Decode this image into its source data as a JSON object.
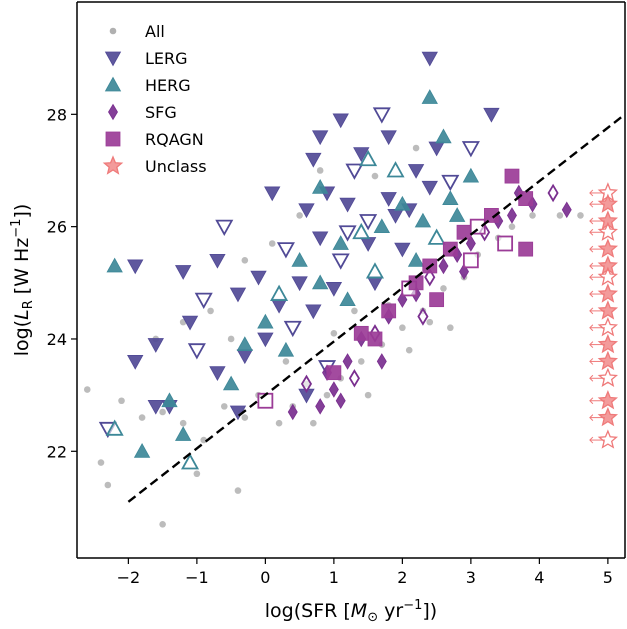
{
  "chart_data": {
    "type": "scatter",
    "title": "",
    "xlabel": {
      "pre": "log(SFR [",
      "sym": "M",
      "sub": "⊙",
      "unit": " yr",
      "sup": "−1",
      "post": "])"
    },
    "ylabel": {
      "pre": "log(",
      "sym": "L",
      "sub": "R",
      "unit": " [W Hz",
      "sup": "−1",
      "post": "])"
    },
    "xlim": [
      -2.75,
      5.25
    ],
    "ylim": [
      20.1,
      30.0
    ],
    "xticks": [
      -2,
      -1,
      0,
      1,
      2,
      3,
      4,
      5
    ],
    "yticks": [
      22,
      24,
      26,
      28
    ],
    "xtick_labels": [
      "−2",
      "−1",
      "0",
      "1",
      "2",
      "3",
      "4",
      "5"
    ],
    "ytick_labels": [
      "22",
      "24",
      "26",
      "28"
    ],
    "grid": false,
    "legend_position": "top-left",
    "reference_line": {
      "style": "dashed",
      "color": "#000000",
      "points": [
        [
          -2,
          21.1
        ],
        [
          5.25,
          28.0
        ]
      ]
    },
    "series": [
      {
        "name": "All",
        "marker": "circle",
        "color": "#b0b0b0",
        "points": [
          [
            -2.6,
            23.1
          ],
          [
            -2.1,
            22.9
          ],
          [
            -1.8,
            22.6
          ],
          [
            -1.5,
            22.7
          ],
          [
            -1.2,
            22.5
          ],
          [
            -0.9,
            22.2
          ],
          [
            -0.6,
            22.8
          ],
          [
            -0.3,
            22.6
          ],
          [
            -0.1,
            23.0
          ],
          [
            0.2,
            22.5
          ],
          [
            0.4,
            22.8
          ],
          [
            0.6,
            23.2
          ],
          [
            0.9,
            23.0
          ],
          [
            1.1,
            23.3
          ],
          [
            1.4,
            23.6
          ],
          [
            1.7,
            23.9
          ],
          [
            2.0,
            24.2
          ],
          [
            2.3,
            24.5
          ],
          [
            2.6,
            24.9
          ],
          [
            2.9,
            25.1
          ],
          [
            3.1,
            25.5
          ],
          [
            3.4,
            25.8
          ],
          [
            3.6,
            26.0
          ],
          [
            3.9,
            26.2
          ],
          [
            4.3,
            26.2
          ],
          [
            4.6,
            26.2
          ],
          [
            -2.4,
            21.8
          ],
          [
            -1.5,
            20.7
          ],
          [
            -1.0,
            21.6
          ],
          [
            -0.4,
            21.3
          ],
          [
            -2.3,
            21.4
          ],
          [
            -1.6,
            24.0
          ],
          [
            -1.2,
            24.3
          ],
          [
            -0.8,
            24.5
          ],
          [
            0.1,
            25.7
          ],
          [
            0.8,
            27.0
          ],
          [
            1.6,
            26.9
          ],
          [
            2.2,
            27.4
          ],
          [
            0.5,
            26.2
          ],
          [
            -0.3,
            25.4
          ],
          [
            1.0,
            24.1
          ],
          [
            1.3,
            24.5
          ],
          [
            1.8,
            24.6
          ],
          [
            2.1,
            23.8
          ],
          [
            2.4,
            24.3
          ],
          [
            2.7,
            24.2
          ],
          [
            1.5,
            23.0
          ],
          [
            0.7,
            22.5
          ],
          [
            0.3,
            23.6
          ],
          [
            -0.5,
            24.0
          ]
        ]
      },
      {
        "name": "LERG",
        "marker": "triangle-down",
        "color": "#514a96",
        "points": [
          [
            -2.3,
            22.4
          ],
          [
            -1.9,
            23.6
          ],
          [
            -1.6,
            22.8
          ],
          [
            -1.4,
            22.8
          ],
          [
            -1.0,
            23.8
          ],
          [
            -0.7,
            23.4
          ],
          [
            -0.4,
            22.7
          ],
          [
            -1.2,
            25.2
          ],
          [
            -0.9,
            24.7
          ],
          [
            -0.7,
            25.4
          ],
          [
            -0.4,
            24.8
          ],
          [
            -0.1,
            25.1
          ],
          [
            0.3,
            25.6
          ],
          [
            0.6,
            26.3
          ],
          [
            0.9,
            26.6
          ],
          [
            1.2,
            26.4
          ],
          [
            1.5,
            26.1
          ],
          [
            1.8,
            26.5
          ],
          [
            2.1,
            26.3
          ],
          [
            2.4,
            26.7
          ],
          [
            2.7,
            26.8
          ],
          [
            0.2,
            24.6
          ],
          [
            0.5,
            25.0
          ],
          [
            0.8,
            25.8
          ],
          [
            1.1,
            25.4
          ],
          [
            0.8,
            27.6
          ],
          [
            1.1,
            27.9
          ],
          [
            1.4,
            27.3
          ],
          [
            1.7,
            28.0
          ],
          [
            1.8,
            27.6
          ],
          [
            2.4,
            29.0
          ],
          [
            2.5,
            27.4
          ],
          [
            3.0,
            27.4
          ],
          [
            3.3,
            28.0
          ],
          [
            -1.9,
            25.3
          ],
          [
            0.7,
            27.2
          ],
          [
            1.3,
            27.0
          ],
          [
            2.2,
            27.0
          ],
          [
            0.0,
            24.0
          ],
          [
            -0.3,
            23.7
          ],
          [
            0.4,
            24.2
          ],
          [
            1.0,
            24.9
          ],
          [
            1.6,
            25.0
          ],
          [
            2.0,
            25.6
          ],
          [
            -0.6,
            26.0
          ],
          [
            0.1,
            26.6
          ],
          [
            -1.6,
            23.9
          ],
          [
            -1.1,
            24.3
          ],
          [
            0.9,
            23.5
          ],
          [
            0.6,
            23.0
          ],
          [
            1.9,
            26.2
          ],
          [
            1.5,
            25.7
          ],
          [
            1.2,
            25.9
          ],
          [
            0.7,
            24.5
          ]
        ]
      },
      {
        "name": "HERG",
        "marker": "triangle-up",
        "color": "#3d8898",
        "points": [
          [
            -2.2,
            22.4
          ],
          [
            -1.8,
            22.0
          ],
          [
            -1.4,
            22.9
          ],
          [
            -1.2,
            22.3
          ],
          [
            -1.1,
            21.8
          ],
          [
            -2.2,
            25.3
          ],
          [
            -0.5,
            23.2
          ],
          [
            0.0,
            24.3
          ],
          [
            0.2,
            24.8
          ],
          [
            0.5,
            25.4
          ],
          [
            0.8,
            25.0
          ],
          [
            1.1,
            25.7
          ],
          [
            1.4,
            25.9
          ],
          [
            1.7,
            26.0
          ],
          [
            2.0,
            26.4
          ],
          [
            2.3,
            26.1
          ],
          [
            2.5,
            25.8
          ],
          [
            2.8,
            26.2
          ],
          [
            3.0,
            26.9
          ],
          [
            2.4,
            28.3
          ],
          [
            1.5,
            27.2
          ],
          [
            2.6,
            27.6
          ],
          [
            0.8,
            26.7
          ],
          [
            1.2,
            24.7
          ],
          [
            1.6,
            25.2
          ],
          [
            2.2,
            25.4
          ],
          [
            0.3,
            23.8
          ],
          [
            -0.3,
            23.9
          ],
          [
            1.9,
            27.0
          ],
          [
            2.7,
            26.5
          ]
        ]
      },
      {
        "name": "SFG",
        "marker": "diamond",
        "color": "#7a2f8f",
        "points": [
          [
            0.6,
            23.2
          ],
          [
            0.9,
            23.4
          ],
          [
            1.2,
            23.6
          ],
          [
            1.4,
            24.0
          ],
          [
            1.6,
            24.1
          ],
          [
            1.8,
            24.4
          ],
          [
            2.0,
            24.7
          ],
          [
            2.2,
            24.8
          ],
          [
            2.4,
            25.1
          ],
          [
            2.6,
            25.3
          ],
          [
            2.8,
            25.5
          ],
          [
            3.0,
            25.7
          ],
          [
            3.2,
            25.9
          ],
          [
            3.4,
            26.1
          ],
          [
            3.6,
            26.2
          ],
          [
            3.9,
            26.4
          ],
          [
            4.2,
            26.6
          ],
          [
            4.4,
            26.3
          ],
          [
            1.1,
            22.9
          ],
          [
            1.7,
            23.6
          ],
          [
            2.3,
            24.4
          ],
          [
            1.0,
            23.1
          ],
          [
            0.4,
            22.7
          ],
          [
            2.9,
            25.2
          ],
          [
            1.3,
            23.3
          ],
          [
            0.8,
            22.8
          ],
          [
            3.7,
            26.6
          ]
        ]
      },
      {
        "name": "RQAGN",
        "marker": "square",
        "color": "#9b3c97",
        "points": [
          [
            0.0,
            22.9
          ],
          [
            1.0,
            23.4
          ],
          [
            1.4,
            24.1
          ],
          [
            1.8,
            24.5
          ],
          [
            2.1,
            24.9
          ],
          [
            2.4,
            25.3
          ],
          [
            2.7,
            25.6
          ],
          [
            2.9,
            25.9
          ],
          [
            3.1,
            26.0
          ],
          [
            3.3,
            26.2
          ],
          [
            3.6,
            26.9
          ],
          [
            3.8,
            26.5
          ],
          [
            3.0,
            25.4
          ],
          [
            2.5,
            24.7
          ],
          [
            1.6,
            24.0
          ],
          [
            3.8,
            25.6
          ],
          [
            3.5,
            25.7
          ],
          [
            2.2,
            25.0
          ]
        ]
      },
      {
        "name": "Unclass",
        "marker": "star",
        "color": "#ef7a7a",
        "points": [
          [
            5,
            22.2
          ],
          [
            5,
            22.6
          ],
          [
            5,
            22.9
          ],
          [
            5,
            23.3
          ],
          [
            5,
            23.6
          ],
          [
            5,
            23.9
          ],
          [
            5,
            24.2
          ],
          [
            5,
            24.5
          ],
          [
            5,
            24.8
          ],
          [
            5,
            25.1
          ],
          [
            5,
            25.3
          ],
          [
            5,
            25.6
          ],
          [
            5,
            25.9
          ],
          [
            5,
            26.1
          ],
          [
            5,
            26.4
          ],
          [
            5,
            26.6
          ]
        ]
      }
    ]
  }
}
